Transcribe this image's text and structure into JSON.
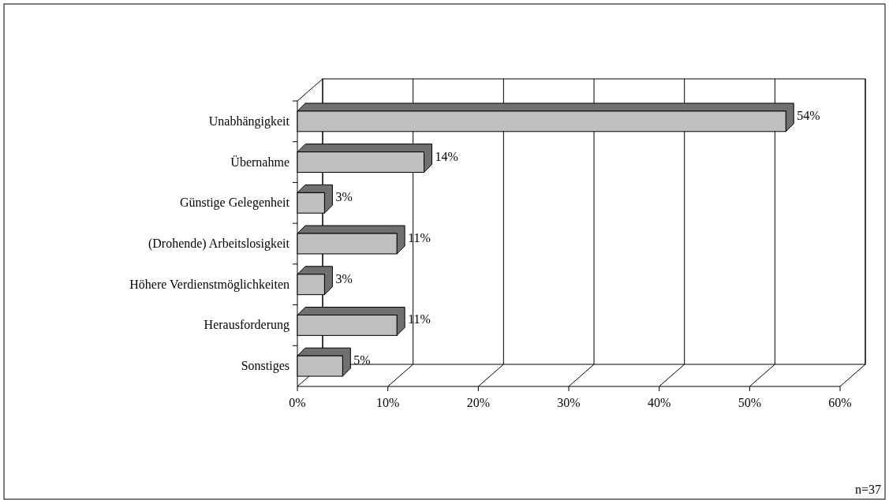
{
  "chart_data": {
    "type": "bar",
    "orientation": "horizontal",
    "categories": [
      "Unabhängigkeit",
      "Übernahme",
      "Günstige Gelegenheit",
      "(Drohende) Arbeitslosigkeit",
      "Höhere Verdienstmöglichkeiten",
      "Herausforderung",
      "Sonstiges"
    ],
    "values": [
      54,
      14,
      3,
      11,
      3,
      11,
      5
    ],
    "value_labels": [
      "54%",
      "14%",
      "3%",
      "11%",
      "3%",
      "11%",
      "5%"
    ],
    "color": "#c0c0c0",
    "xlim": [
      0,
      60
    ],
    "xticks": [
      {
        "value": 0,
        "label": "0%"
      },
      {
        "value": 10,
        "label": "10%"
      },
      {
        "value": 20,
        "label": "20%"
      },
      {
        "value": 30,
        "label": "30%"
      },
      {
        "value": 40,
        "label": "40%"
      },
      {
        "value": 50,
        "label": "50%"
      },
      {
        "value": 60,
        "label": "60%"
      }
    ],
    "grid": "x",
    "annotations": [
      "n=37"
    ]
  }
}
